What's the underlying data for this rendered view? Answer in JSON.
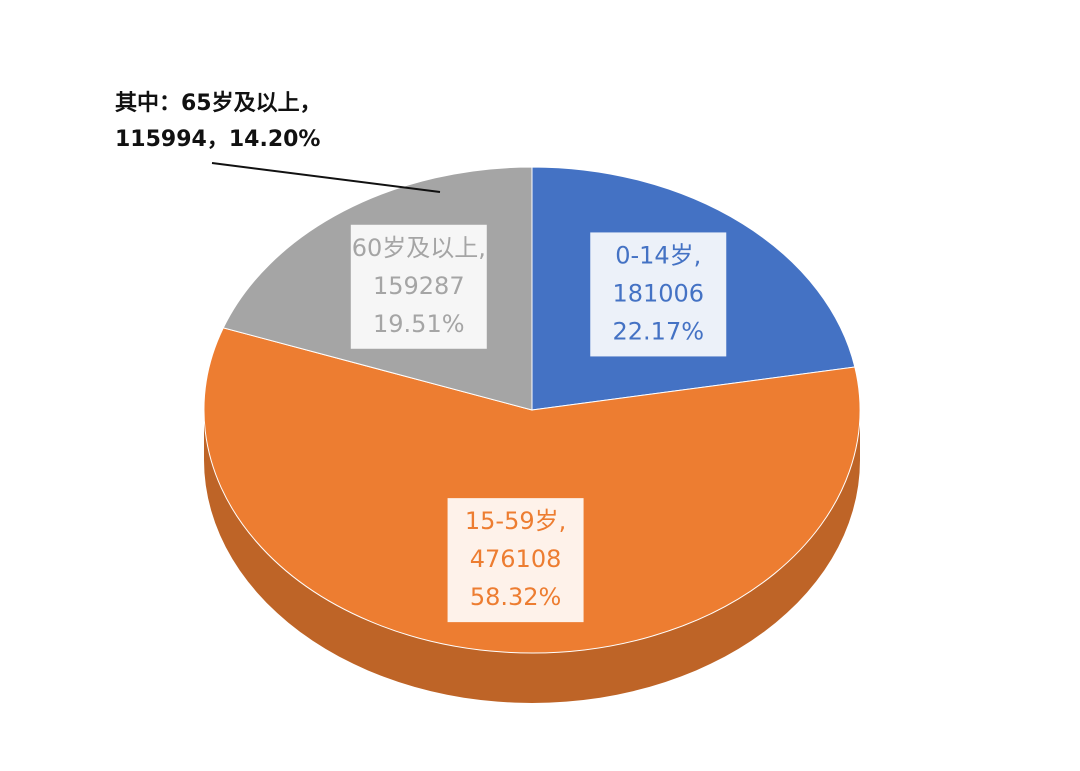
{
  "chart_data": {
    "type": "pie",
    "categories": [
      "0-14岁,",
      "15-59岁,",
      "60岁及以上,"
    ],
    "values": [
      181006,
      476108,
      159287
    ],
    "percent_labels": [
      "22.17%",
      "58.32%",
      "19.51%"
    ],
    "colors": [
      "#4472c4",
      "#ed7d31",
      "#a5a5a5"
    ],
    "annotation": [
      "其中：65岁及以上，",
      "115994，14.20%"
    ]
  }
}
